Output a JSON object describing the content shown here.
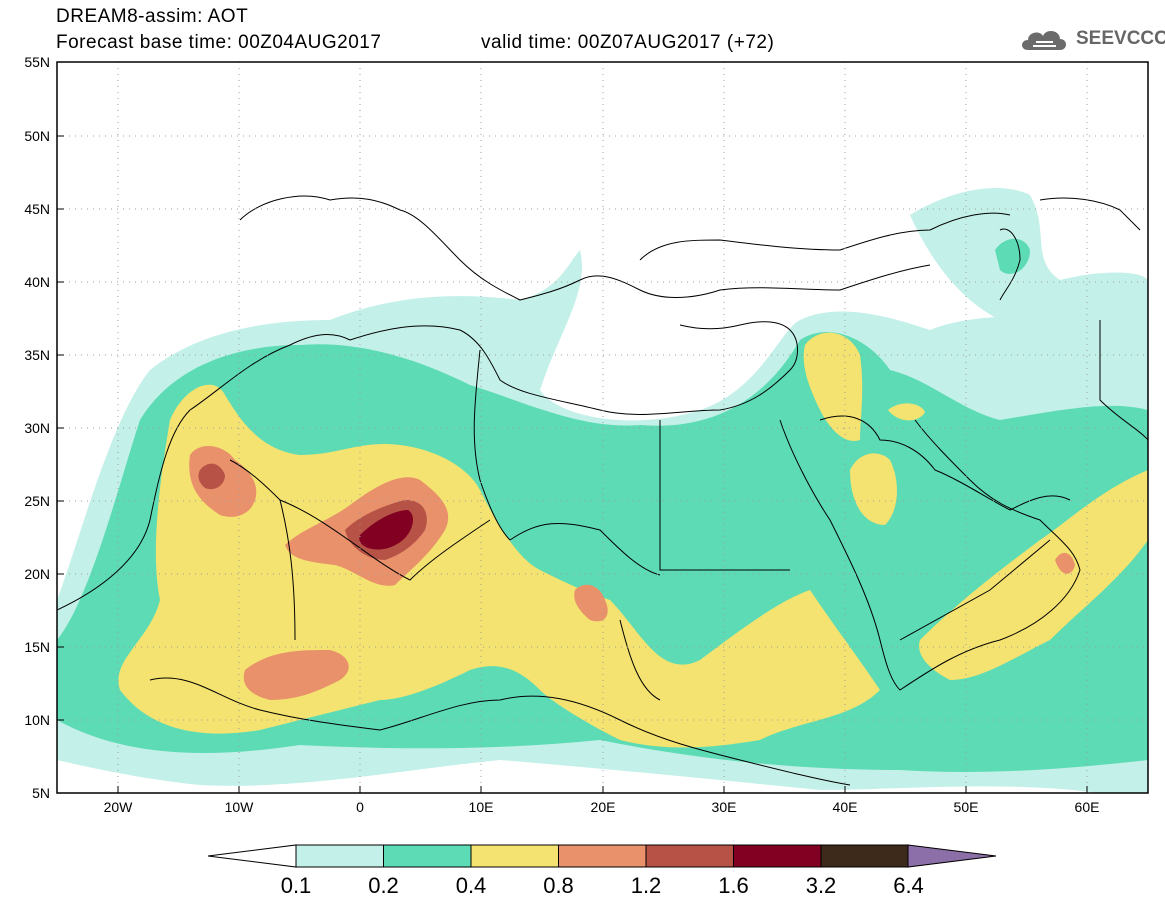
{
  "header": {
    "title": "DREAM8-assim: AOT",
    "base_time": "Forecast base time: 00Z04AUG2017",
    "valid_time": "valid time: 00Z07AUG2017 (+72)",
    "logo_text": "SEEVCCC"
  },
  "axes": {
    "lat_labels": [
      "55N",
      "50N",
      "45N",
      "40N",
      "35N",
      "30N",
      "25N",
      "20N",
      "15N",
      "10N",
      "5N"
    ],
    "lon_labels": [
      "20W",
      "10W",
      "0",
      "10E",
      "20E",
      "30E",
      "40E",
      "50E",
      "60E"
    ]
  },
  "colorbar": {
    "labels": [
      "0.1",
      "0.2",
      "0.4",
      "0.8",
      "1.2",
      "1.6",
      "3.2",
      "6.4"
    ],
    "colors": [
      "#c3f0e8",
      "#5ddbb4",
      "#f4e370",
      "#e8916a",
      "#b65246",
      "#820021",
      "#3d2a1b",
      "#8c6ea8"
    ]
  }
}
